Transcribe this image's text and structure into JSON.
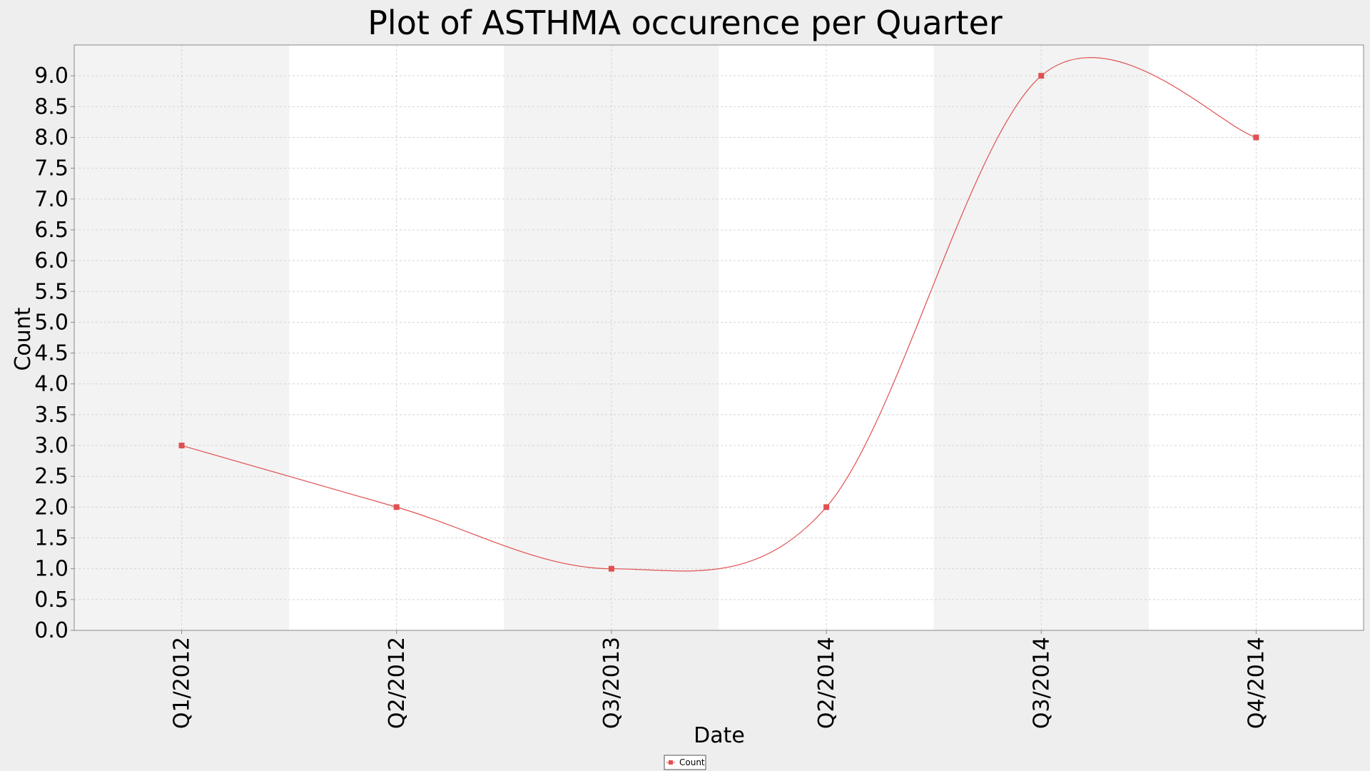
{
  "chart_data": {
    "type": "line",
    "title": "Plot of ASTHMA occurence per Quarter",
    "xlabel": "Date",
    "ylabel": "Count",
    "categories": [
      "Q1/2012",
      "Q2/2012",
      "Q3/2013",
      "Q2/2014",
      "Q3/2014",
      "Q4/2014"
    ],
    "series": [
      {
        "name": "Count",
        "values": [
          3,
          2,
          1,
          2,
          9,
          8
        ],
        "color": "#e05050"
      }
    ],
    "ylim": [
      0,
      9.5
    ],
    "yticks": [
      "0.0",
      "0.5",
      "1.0",
      "1.5",
      "2.0",
      "2.5",
      "3.0",
      "3.5",
      "4.0",
      "4.5",
      "5.0",
      "5.5",
      "6.0",
      "6.5",
      "7.0",
      "7.5",
      "8.0",
      "8.5",
      "9.0"
    ],
    "grid": true,
    "smoothed": true,
    "legend_position": "bottom-center",
    "colors": {
      "page_background": "#eeeeee",
      "band_light": "#f3f3f3",
      "band_white": "#ffffff",
      "gridline": "#d4d4d4",
      "axis": "#888888"
    }
  }
}
